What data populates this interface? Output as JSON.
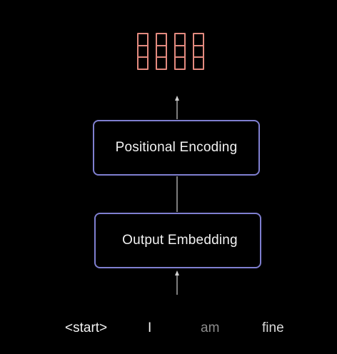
{
  "diagram": {
    "output_vectors": [
      {
        "cells": 3
      },
      {
        "cells": 3
      },
      {
        "cells": 3
      },
      {
        "cells": 3
      }
    ],
    "boxes": {
      "positional_encoding": "Positional Encoding",
      "output_embedding": "Output Embedding"
    },
    "tokens": [
      {
        "text": "<start>",
        "color": "#f2f2f2"
      },
      {
        "text": "I",
        "color": "#f2f2f2"
      },
      {
        "text": "am",
        "color": "#8c8c8c"
      },
      {
        "text": "fine",
        "color": "#d9d9d9"
      }
    ],
    "colors": {
      "background": "#000000",
      "box_border": "#7f7fd0",
      "vector": "#e38a7f",
      "arrow": "#d0d0d0"
    }
  }
}
